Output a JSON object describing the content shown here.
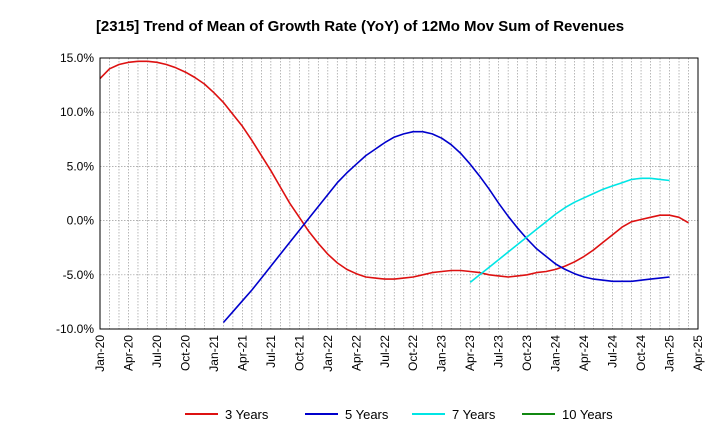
{
  "chart_data": {
    "type": "line",
    "title": "[2315]  Trend of Mean of Growth Rate (YoY) of 12Mo Mov Sum of Revenues",
    "xlabel": "",
    "ylabel": "",
    "ylim": [
      -10,
      15
    ],
    "yticks": [
      15,
      10,
      5,
      0,
      -5,
      -10
    ],
    "ytick_labels": [
      "15.0%",
      "10.0%",
      "5.0%",
      "0.0%",
      "-5.0%",
      "-10.0%"
    ],
    "x_start": "Jan-20",
    "x_end": "Apr-25",
    "months_total": 63,
    "xtick_labels": [
      "Jan-20",
      "Apr-20",
      "Jul-20",
      "Oct-20",
      "Jan-21",
      "Apr-21",
      "Jul-21",
      "Oct-21",
      "Jan-22",
      "Apr-22",
      "Jul-22",
      "Oct-22",
      "Jan-23",
      "Apr-23",
      "Jul-23",
      "Oct-23",
      "Jan-24",
      "Apr-24",
      "Jul-24",
      "Oct-24",
      "Jan-25",
      "Apr-25"
    ],
    "grid": true,
    "series": [
      {
        "name": "3 Years",
        "color": "#dd1111",
        "start_month": 0,
        "values": [
          13.1,
          14.0,
          14.4,
          14.6,
          14.7,
          14.7,
          14.6,
          14.4,
          14.1,
          13.7,
          13.2,
          12.6,
          11.8,
          10.9,
          9.8,
          8.7,
          7.4,
          6.0,
          4.6,
          3.1,
          1.6,
          0.3,
          -1.0,
          -2.1,
          -3.1,
          -3.9,
          -4.5,
          -4.9,
          -5.2,
          -5.3,
          -5.4,
          -5.4,
          -5.3,
          -5.2,
          -5.0,
          -4.8,
          -4.7,
          -4.6,
          -4.6,
          -4.7,
          -4.8,
          -5.0,
          -5.1,
          -5.2,
          -5.1,
          -5.0,
          -4.8,
          -4.7,
          -4.5,
          -4.2,
          -3.8,
          -3.3,
          -2.7,
          -2.0,
          -1.3,
          -0.6,
          -0.1,
          0.1,
          0.3,
          0.5,
          0.5,
          0.3,
          -0.2
        ]
      },
      {
        "name": "5 Years",
        "color": "#0000cc",
        "start_month": 13,
        "values": [
          -9.4,
          -8.4,
          -7.4,
          -6.4,
          -5.3,
          -4.2,
          -3.1,
          -2.0,
          -0.9,
          0.2,
          1.3,
          2.4,
          3.5,
          4.4,
          5.2,
          6.0,
          6.6,
          7.2,
          7.7,
          8.0,
          8.2,
          8.2,
          8.0,
          7.6,
          7.0,
          6.2,
          5.2,
          4.1,
          2.9,
          1.6,
          0.4,
          -0.7,
          -1.7,
          -2.6,
          -3.3,
          -4.0,
          -4.5,
          -4.9,
          -5.2,
          -5.4,
          -5.5,
          -5.6,
          -5.6,
          -5.6,
          -5.5,
          -5.4,
          -5.3,
          -5.2
        ]
      },
      {
        "name": "7 Years",
        "color": "#00e5e5",
        "start_month": 39,
        "values": [
          -5.7,
          -5.0,
          -4.3,
          -3.6,
          -2.9,
          -2.2,
          -1.5,
          -0.8,
          -0.1,
          0.6,
          1.2,
          1.7,
          2.1,
          2.5,
          2.9,
          3.2,
          3.5,
          3.8,
          3.9,
          3.9,
          3.8,
          3.7
        ]
      },
      {
        "name": "10 Years",
        "color": "#118811",
        "start_month": 0,
        "values": []
      }
    ],
    "legend_position": "bottom"
  }
}
